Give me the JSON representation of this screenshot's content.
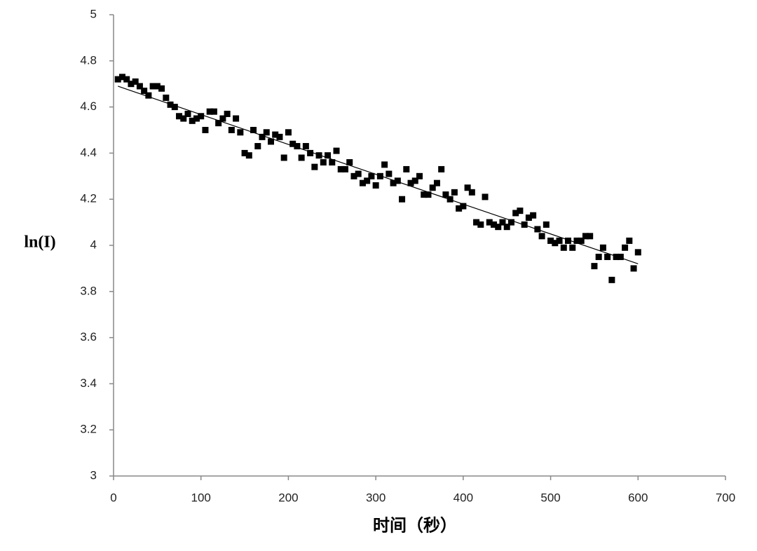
{
  "chart_data": {
    "type": "scatter",
    "x_label": "时间（秒）",
    "y_label": "ln(I)",
    "xlim": [
      0,
      700
    ],
    "xticks": [
      0,
      100,
      200,
      300,
      400,
      500,
      600,
      700
    ],
    "ylim": [
      3,
      5
    ],
    "yticks": [
      3,
      3.2,
      3.4,
      3.6,
      3.8,
      4,
      4.2,
      4.4,
      4.6,
      4.8,
      5
    ],
    "grid": false,
    "color": "#000000",
    "x": [
      5,
      10,
      15,
      20,
      25,
      30,
      35,
      40,
      45,
      50,
      55,
      60,
      65,
      70,
      75,
      80,
      85,
      90,
      95,
      100,
      105,
      110,
      115,
      120,
      125,
      130,
      135,
      140,
      145,
      150,
      155,
      160,
      165,
      170,
      175,
      180,
      185,
      190,
      195,
      200,
      205,
      210,
      215,
      220,
      225,
      230,
      235,
      240,
      245,
      250,
      255,
      260,
      265,
      270,
      275,
      280,
      285,
      290,
      295,
      300,
      305,
      310,
      315,
      320,
      325,
      330,
      335,
      340,
      345,
      350,
      355,
      360,
      365,
      370,
      375,
      380,
      385,
      390,
      395,
      400,
      405,
      410,
      415,
      420,
      425,
      430,
      435,
      440,
      445,
      450,
      455,
      460,
      465,
      470,
      475,
      480,
      485,
      490,
      495,
      500,
      505,
      510,
      515,
      520,
      525,
      530,
      535,
      540,
      545,
      550,
      555,
      560,
      565,
      570,
      575,
      580,
      585,
      590,
      595,
      600
    ],
    "values": [
      4.72,
      4.73,
      4.72,
      4.7,
      4.71,
      4.69,
      4.67,
      4.65,
      4.69,
      4.69,
      4.68,
      4.64,
      4.61,
      4.6,
      4.56,
      4.55,
      4.57,
      4.54,
      4.55,
      4.56,
      4.5,
      4.58,
      4.58,
      4.53,
      4.55,
      4.57,
      4.5,
      4.55,
      4.49,
      4.4,
      4.39,
      4.5,
      4.43,
      4.47,
      4.49,
      4.45,
      4.48,
      4.47,
      4.38,
      4.49,
      4.44,
      4.43,
      4.38,
      4.43,
      4.4,
      4.34,
      4.39,
      4.36,
      4.39,
      4.36,
      4.41,
      4.33,
      4.33,
      4.36,
      4.3,
      4.31,
      4.27,
      4.28,
      4.3,
      4.26,
      4.3,
      4.35,
      4.31,
      4.27,
      4.28,
      4.2,
      4.33,
      4.27,
      4.28,
      4.3,
      4.22,
      4.22,
      4.25,
      4.27,
      4.33,
      4.22,
      4.2,
      4.23,
      4.16,
      4.17,
      4.25,
      4.23,
      4.1,
      4.09,
      4.21,
      4.1,
      4.09,
      4.08,
      4.1,
      4.08,
      4.1,
      4.14,
      4.15,
      4.09,
      4.12,
      4.13,
      4.07,
      4.04,
      4.09,
      4.02,
      4.01,
      4.02,
      3.99,
      4.02,
      3.99,
      4.02,
      4.02,
      4.04,
      4.04,
      3.91,
      3.95,
      3.99,
      3.95,
      3.85,
      3.95,
      3.95,
      3.99,
      4.02,
      3.9,
      3.97
    ],
    "trendline": {
      "x": [
        5,
        600
      ],
      "values": [
        4.69,
        3.92
      ]
    }
  }
}
